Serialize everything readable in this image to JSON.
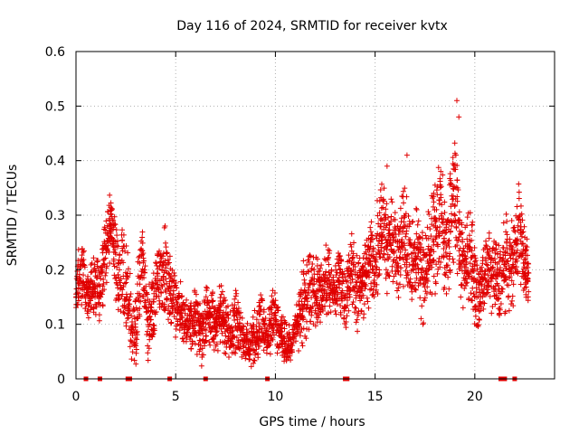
{
  "chart_data": {
    "type": "scatter",
    "title": "Day 116 of 2024, SRMTID for receiver kvtx",
    "xlabel": "GPS time / hours",
    "ylabel": "SRMTID / TECUs",
    "xlim": [
      0,
      24
    ],
    "ylim": [
      0,
      0.6
    ],
    "xticks": [
      0,
      5,
      10,
      15,
      20
    ],
    "xtick_labels": [
      "0",
      "5",
      "10",
      "15",
      "20"
    ],
    "yticks": [
      0,
      0.1,
      0.2,
      0.3,
      0.4,
      0.5,
      0.6
    ],
    "ytick_labels": [
      "0",
      "0.1",
      "0.2",
      "0.3",
      "0.4",
      "0.5",
      "0.6"
    ],
    "grid": true,
    "marker": "+",
    "color": "#e00000",
    "series": [
      {
        "name": "SRMTID",
        "x": [
          0.0,
          0.3,
          0.6,
          0.9,
          1.2,
          1.5,
          1.8,
          2.1,
          2.4,
          2.7,
          3.0,
          3.3,
          3.6,
          3.9,
          4.2,
          4.5,
          4.8,
          5.1,
          5.4,
          5.7,
          6.0,
          6.3,
          6.6,
          6.9,
          7.2,
          7.5,
          7.8,
          8.1,
          8.4,
          8.7,
          9.0,
          9.3,
          9.6,
          9.9,
          10.2,
          10.5,
          10.8,
          11.1,
          11.4,
          11.7,
          12.0,
          12.3,
          12.6,
          12.9,
          13.2,
          13.5,
          13.8,
          14.1,
          14.4,
          14.7,
          15.0,
          15.3,
          15.6,
          15.9,
          16.2,
          16.5,
          16.8,
          17.1,
          17.4,
          17.7,
          18.0,
          18.3,
          18.6,
          18.9,
          19.2,
          19.5,
          19.8,
          20.1,
          20.4,
          20.7,
          21.0,
          21.3,
          21.6,
          21.9,
          22.2,
          22.5,
          22.7
        ],
        "y": [
          0.16,
          0.2,
          0.15,
          0.17,
          0.16,
          0.24,
          0.3,
          0.18,
          0.2,
          0.12,
          0.09,
          0.22,
          0.1,
          0.14,
          0.18,
          0.2,
          0.15,
          0.13,
          0.12,
          0.1,
          0.11,
          0.08,
          0.13,
          0.1,
          0.12,
          0.1,
          0.09,
          0.11,
          0.07,
          0.06,
          0.08,
          0.1,
          0.07,
          0.12,
          0.08,
          0.07,
          0.06,
          0.1,
          0.14,
          0.16,
          0.17,
          0.15,
          0.18,
          0.16,
          0.19,
          0.14,
          0.2,
          0.15,
          0.18,
          0.22,
          0.2,
          0.3,
          0.25,
          0.24,
          0.22,
          0.28,
          0.2,
          0.23,
          0.18,
          0.24,
          0.26,
          0.3,
          0.22,
          0.35,
          0.27,
          0.2,
          0.24,
          0.15,
          0.18,
          0.2,
          0.19,
          0.18,
          0.22,
          0.2,
          0.28,
          0.21,
          0.18
        ],
        "spread": [
          0.04,
          0.05,
          0.03,
          0.04,
          0.04,
          0.05,
          0.04,
          0.05,
          0.06,
          0.05,
          0.05,
          0.05,
          0.05,
          0.05,
          0.05,
          0.06,
          0.04,
          0.04,
          0.04,
          0.04,
          0.04,
          0.04,
          0.04,
          0.04,
          0.04,
          0.04,
          0.04,
          0.04,
          0.03,
          0.03,
          0.04,
          0.04,
          0.03,
          0.04,
          0.03,
          0.03,
          0.02,
          0.04,
          0.05,
          0.05,
          0.05,
          0.04,
          0.05,
          0.04,
          0.05,
          0.04,
          0.06,
          0.05,
          0.05,
          0.06,
          0.06,
          0.07,
          0.06,
          0.06,
          0.06,
          0.07,
          0.06,
          0.06,
          0.06,
          0.06,
          0.07,
          0.08,
          0.06,
          0.1,
          0.07,
          0.06,
          0.06,
          0.05,
          0.05,
          0.05,
          0.05,
          0.05,
          0.06,
          0.06,
          0.06,
          0.05,
          0.05
        ]
      }
    ],
    "extreme_points": [
      {
        "x": 19.1,
        "y": 0.51
      },
      {
        "x": 19.2,
        "y": 0.48
      },
      {
        "x": 16.6,
        "y": 0.41
      },
      {
        "x": 15.6,
        "y": 0.39
      }
    ],
    "baseline_marks_x": [
      0.5,
      1.2,
      2.6,
      2.7,
      4.7,
      6.5,
      9.6,
      13.5,
      13.6,
      21.3,
      21.5,
      22.0
    ]
  }
}
